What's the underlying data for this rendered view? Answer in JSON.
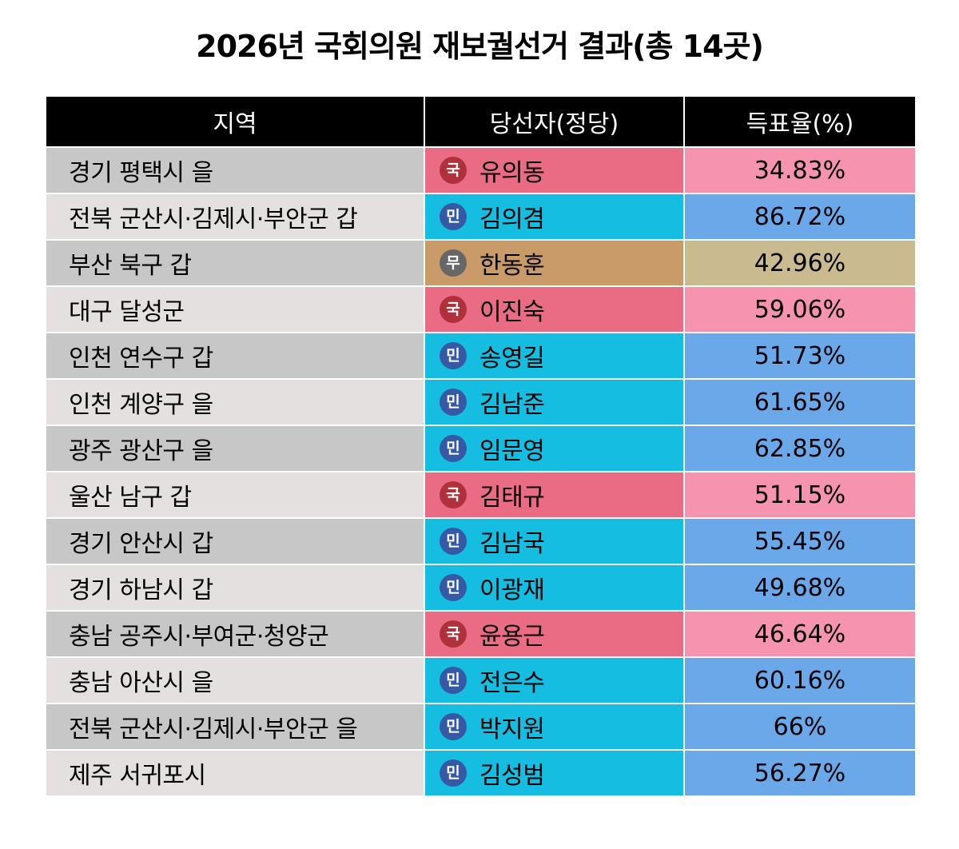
{
  "title": "2026년 국회의원 재보궐선거 결과(총 14곳)",
  "colors": {
    "header_bg": "#000000",
    "region_bg_dark": "#c8c7c7",
    "region_bg_light": "#e4e0e0",
    "party_kuk_cell": "#ea6c84",
    "party_kuk_rate": "#f693ae",
    "party_kuk_badge": "#b0313b",
    "party_min_cell": "#15bde0",
    "party_min_rate": "#6aa8ea",
    "party_min_badge": "#3559a5",
    "party_mu_cell": "#c89b68",
    "party_mu_rate": "#c9bb8f",
    "party_mu_badge": "#676767"
  },
  "chart_data": {
    "type": "table",
    "title": "2026년 국회의원 재보궐선거 결과(총 14곳)",
    "columns": [
      "지역",
      "당선자(정당)",
      "득표율(%)"
    ],
    "rows": [
      {
        "region": "경기 평택시 을",
        "party": "국",
        "winner": "유의동",
        "rate": "34.83%"
      },
      {
        "region": "전북 군산시·김제시·부안군 갑",
        "party": "민",
        "winner": "김의겸",
        "rate": "86.72%"
      },
      {
        "region": "부산 북구 갑",
        "party": "무",
        "winner": "한동훈",
        "rate": "42.96%"
      },
      {
        "region": "대구 달성군",
        "party": "국",
        "winner": "이진숙",
        "rate": "59.06%"
      },
      {
        "region": "인천 연수구 갑",
        "party": "민",
        "winner": "송영길",
        "rate": "51.73%"
      },
      {
        "region": "인천 계양구 을",
        "party": "민",
        "winner": "김남준",
        "rate": "61.65%"
      },
      {
        "region": "광주 광산구 을",
        "party": "민",
        "winner": "임문영",
        "rate": "62.85%"
      },
      {
        "region": "울산 남구 갑",
        "party": "국",
        "winner": "김태규",
        "rate": "51.15%"
      },
      {
        "region": "경기 안산시 갑",
        "party": "민",
        "winner": "김남국",
        "rate": "55.45%"
      },
      {
        "region": "경기 하남시 갑",
        "party": "민",
        "winner": "이광재",
        "rate": "49.68%"
      },
      {
        "region": "충남 공주시·부여군·청양군",
        "party": "국",
        "winner": "윤용근",
        "rate": "46.64%"
      },
      {
        "region": "충남 아산시 을",
        "party": "민",
        "winner": "전은수",
        "rate": "60.16%"
      },
      {
        "region": "전북 군산시·김제시·부안군 을",
        "party": "민",
        "winner": "박지원",
        "rate": "66%"
      },
      {
        "region": "제주 서귀포시",
        "party": "민",
        "winner": "김성범",
        "rate": "56.27%"
      }
    ]
  }
}
